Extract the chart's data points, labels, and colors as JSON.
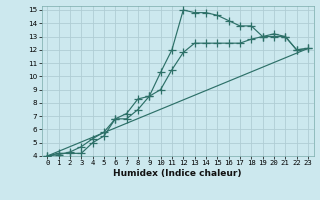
{
  "xlabel": "Humidex (Indice chaleur)",
  "bg_color": "#cce8ee",
  "grid_color": "#b0cdd4",
  "line_color": "#2d7068",
  "xlim": [
    -0.5,
    23.5
  ],
  "ylim": [
    4,
    15.3
  ],
  "xticks": [
    0,
    1,
    2,
    3,
    4,
    5,
    6,
    7,
    8,
    9,
    10,
    11,
    12,
    13,
    14,
    15,
    16,
    17,
    18,
    19,
    20,
    21,
    22,
    23
  ],
  "yticks": [
    4,
    5,
    6,
    7,
    8,
    9,
    10,
    11,
    12,
    13,
    14,
    15
  ],
  "line1_x": [
    0,
    1,
    2,
    3,
    4,
    5,
    6,
    7,
    8,
    9,
    10,
    11,
    12,
    13,
    14,
    15,
    16,
    17,
    18,
    19,
    20,
    21,
    22,
    23
  ],
  "line1_y": [
    4.0,
    4.2,
    4.2,
    4.2,
    5.0,
    5.5,
    6.8,
    6.8,
    7.5,
    8.5,
    10.3,
    12.0,
    15.0,
    14.8,
    14.8,
    14.6,
    14.2,
    13.8,
    13.8,
    13.0,
    13.2,
    13.0,
    12.0,
    12.1
  ],
  "line2_x": [
    0,
    1,
    2,
    3,
    4,
    5,
    6,
    7,
    8,
    9,
    10,
    11,
    12,
    13,
    14,
    15,
    16,
    17,
    18,
    19,
    20,
    21,
    22,
    23
  ],
  "line2_y": [
    4.0,
    4.1,
    4.3,
    4.7,
    5.3,
    5.8,
    6.8,
    7.2,
    8.3,
    8.5,
    9.0,
    10.5,
    11.8,
    12.5,
    12.5,
    12.5,
    12.5,
    12.5,
    12.8,
    13.0,
    13.0,
    13.0,
    12.0,
    12.1
  ],
  "line3_x": [
    0,
    23
  ],
  "line3_y": [
    4.0,
    12.1
  ],
  "xlabel_fontsize": 6.5,
  "tick_fontsize": 5.2,
  "marker_size": 2.2,
  "linewidth": 0.85
}
